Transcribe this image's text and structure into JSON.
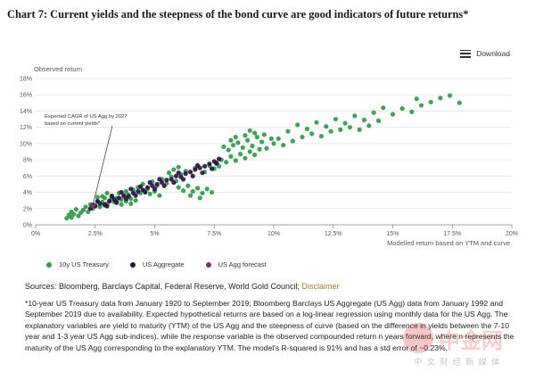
{
  "title": "Chart 7: Current yields and the steepness of the bond curve are good indicators of future returns*",
  "toolbar": {
    "download_label": "Download"
  },
  "icons": {
    "download": "hamburger-menu-icon"
  },
  "chart_data": {
    "type": "scatter",
    "ylabel": "Observed return",
    "xlabel": "Modelled return based on YTM and curve",
    "xlim": [
      0,
      20
    ],
    "ylim": [
      0,
      18
    ],
    "x_ticks": [
      "0%",
      "2.5%",
      "5%",
      "7.5%",
      "10%",
      "12.5%",
      "15%",
      "17.5%",
      "20%"
    ],
    "y_ticks": [
      "0%",
      "2%",
      "4%",
      "6%",
      "8%",
      "10%",
      "12%",
      "14%",
      "16%",
      "18%"
    ],
    "grid": "horizontal",
    "legend_position": "bottom-left",
    "annotation": {
      "text": [
        "Expected CAGR of US Agg by 2027",
        "based on current yields*"
      ],
      "x": 2.4,
      "y": 2.4
    },
    "colors": {
      "treasury": "#2e9b4b",
      "aggregate": "#2c1245",
      "forecast": "#7a2f6a"
    },
    "series": [
      {
        "name": "10y US Treasury",
        "color": "#2e9b4b",
        "points": [
          [
            1.3,
            0.8
          ],
          [
            1.4,
            1.2
          ],
          [
            1.5,
            1.6
          ],
          [
            1.5,
            0.9
          ],
          [
            1.6,
            1.3
          ],
          [
            1.7,
            1.9
          ],
          [
            1.8,
            1.1
          ],
          [
            1.9,
            1.5
          ],
          [
            2.0,
            1.8
          ],
          [
            2.1,
            2.2
          ],
          [
            2.2,
            1.6
          ],
          [
            2.3,
            2.5
          ],
          [
            2.4,
            2.0
          ],
          [
            2.5,
            2.4
          ],
          [
            2.6,
            2.9
          ],
          [
            2.7,
            2.2
          ],
          [
            2.8,
            2.8
          ],
          [
            2.9,
            3.3
          ],
          [
            3.0,
            2.6
          ],
          [
            3.1,
            3.0
          ],
          [
            3.2,
            3.6
          ],
          [
            3.3,
            2.8
          ],
          [
            3.4,
            3.3
          ],
          [
            3.5,
            3.9
          ],
          [
            3.6,
            3.1
          ],
          [
            3.7,
            3.5
          ],
          [
            3.8,
            4.1
          ],
          [
            3.9,
            3.7
          ],
          [
            4.0,
            3.2
          ],
          [
            4.1,
            4.3
          ],
          [
            2.8,
            3.5
          ],
          [
            3.0,
            3.9
          ],
          [
            3.2,
            3.4
          ],
          [
            3.4,
            2.7
          ],
          [
            3.6,
            2.5
          ],
          [
            3.8,
            2.9
          ],
          [
            4.0,
            2.6
          ],
          [
            4.2,
            3.0
          ],
          [
            2.6,
            3.4
          ],
          [
            2.9,
            2.4
          ],
          [
            4.3,
            4.6
          ],
          [
            4.5,
            5.0
          ],
          [
            4.7,
            4.4
          ],
          [
            4.9,
            5.3
          ],
          [
            5.1,
            4.8
          ],
          [
            5.3,
            5.6
          ],
          [
            5.5,
            5.1
          ],
          [
            5.7,
            5.9
          ],
          [
            5.9,
            5.4
          ],
          [
            6.1,
            6.2
          ],
          [
            4.4,
            3.9
          ],
          [
            4.6,
            4.2
          ],
          [
            4.8,
            3.8
          ],
          [
            5.0,
            4.1
          ],
          [
            5.2,
            3.6
          ],
          [
            6.0,
            4.6
          ],
          [
            6.2,
            4.2
          ],
          [
            6.4,
            4.8
          ],
          [
            6.6,
            4.1
          ],
          [
            6.8,
            4.5
          ],
          [
            7.0,
            3.9
          ],
          [
            7.2,
            4.4
          ],
          [
            6.5,
            3.6
          ],
          [
            6.9,
            3.3
          ],
          [
            7.4,
            4.0
          ],
          [
            7.6,
            7.5
          ],
          [
            7.8,
            8.0
          ],
          [
            8.0,
            7.7
          ],
          [
            8.2,
            8.4
          ],
          [
            8.4,
            7.9
          ],
          [
            8.6,
            8.7
          ],
          [
            8.8,
            8.2
          ],
          [
            9.0,
            9.0
          ],
          [
            9.2,
            8.6
          ],
          [
            9.4,
            9.3
          ],
          [
            8.1,
            9.2
          ],
          [
            8.3,
            9.8
          ],
          [
            8.5,
            10.1
          ],
          [
            8.7,
            9.5
          ],
          [
            8.9,
            10.4
          ],
          [
            9.1,
            9.7
          ],
          [
            9.3,
            10.8
          ],
          [
            9.5,
            10.2
          ],
          [
            9.7,
            9.4
          ],
          [
            9.9,
            10.6
          ],
          [
            8.4,
            10.8
          ],
          [
            8.8,
            11.0
          ],
          [
            9.2,
            11.3
          ],
          [
            9.6,
            11.1
          ],
          [
            10.0,
            10.0
          ],
          [
            10.2,
            10.6
          ],
          [
            10.4,
            9.8
          ],
          [
            7.9,
            9.6
          ],
          [
            8.2,
            10.4
          ],
          [
            9.0,
            11.6
          ],
          [
            10.6,
            11.5
          ],
          [
            11.0,
            12.3
          ],
          [
            11.4,
            11.8
          ],
          [
            11.8,
            12.6
          ],
          [
            12.2,
            12.1
          ],
          [
            12.6,
            13.0
          ],
          [
            13.0,
            12.5
          ],
          [
            13.4,
            13.4
          ],
          [
            13.8,
            12.9
          ],
          [
            14.2,
            13.8
          ],
          [
            10.8,
            10.3
          ],
          [
            11.2,
            10.8
          ],
          [
            11.6,
            11.2
          ],
          [
            12.0,
            10.9
          ],
          [
            12.4,
            11.5
          ],
          [
            12.8,
            11.7
          ],
          [
            13.2,
            12.0
          ],
          [
            13.6,
            11.7
          ],
          [
            14.0,
            12.2
          ],
          [
            14.4,
            12.8
          ],
          [
            14.6,
            14.4
          ],
          [
            15.0,
            13.6
          ],
          [
            15.4,
            14.3
          ],
          [
            15.8,
            13.9
          ],
          [
            16.2,
            14.7
          ],
          [
            16.6,
            15.1
          ],
          [
            17.0,
            15.6
          ],
          [
            17.4,
            15.9
          ],
          [
            17.8,
            15.0
          ],
          [
            16.0,
            15.5
          ],
          [
            5.6,
            6.4
          ],
          [
            5.8,
            6.8
          ],
          [
            6.0,
            7.1
          ],
          [
            6.3,
            6.6
          ],
          [
            6.7,
            7.0
          ],
          [
            7.1,
            6.5
          ],
          [
            7.3,
            7.3
          ],
          [
            7.5,
            6.9
          ],
          [
            7.7,
            7.2
          ]
        ]
      },
      {
        "name": "US Aggregate",
        "color": "#2c1245",
        "points": [
          [
            2.3,
            2.0
          ],
          [
            2.5,
            2.3
          ],
          [
            2.7,
            2.6
          ],
          [
            2.9,
            2.5
          ],
          [
            3.1,
            2.9
          ],
          [
            3.3,
            3.1
          ],
          [
            3.5,
            3.3
          ],
          [
            3.7,
            3.6
          ],
          [
            3.9,
            3.5
          ],
          [
            4.1,
            3.9
          ],
          [
            4.3,
            4.1
          ],
          [
            4.5,
            4.3
          ],
          [
            4.7,
            4.6
          ],
          [
            4.9,
            4.8
          ],
          [
            5.1,
            5.0
          ],
          [
            5.3,
            5.2
          ],
          [
            5.5,
            5.5
          ],
          [
            5.7,
            5.6
          ],
          [
            5.9,
            6.0
          ],
          [
            6.1,
            5.9
          ],
          [
            6.3,
            6.3
          ],
          [
            6.5,
            6.5
          ],
          [
            6.7,
            6.8
          ],
          [
            6.9,
            7.0
          ],
          [
            7.1,
            7.2
          ],
          [
            7.3,
            7.5
          ],
          [
            7.5,
            7.8
          ],
          [
            7.7,
            8.1
          ],
          [
            3.0,
            2.3
          ],
          [
            3.4,
            2.8
          ],
          [
            3.8,
            3.2
          ],
          [
            4.2,
            3.6
          ],
          [
            4.6,
            4.0
          ],
          [
            5.0,
            4.4
          ],
          [
            5.4,
            4.8
          ],
          [
            5.8,
            5.2
          ],
          [
            6.2,
            5.6
          ],
          [
            6.6,
            6.0
          ],
          [
            7.0,
            6.4
          ],
          [
            7.4,
            6.9
          ],
          [
            2.6,
            2.9
          ],
          [
            3.2,
            3.5
          ],
          [
            3.6,
            4.0
          ],
          [
            4.4,
            4.7
          ],
          [
            5.2,
            5.6
          ],
          [
            6.0,
            6.4
          ],
          [
            6.8,
            7.3
          ],
          [
            7.6,
            7.6
          ],
          [
            4.0,
            4.4
          ],
          [
            4.8,
            5.2
          ]
        ]
      },
      {
        "name": "US Agg forecast",
        "color": "#7a2f6a",
        "points": [
          [
            2.4,
            2.4
          ]
        ]
      }
    ]
  },
  "sources": {
    "text": "Sources: Bloomberg, Barclays Capital, Federal Reserve, World Gold Council; ",
    "disclaimer": "Disclaimer"
  },
  "footnote": "*10-year US Treasury data from January 1920 to September 2019; Bloomberg Barclays US Aggregate (US Agg) data from January 1992 and September 2019 due to availability. Expected hypothetical returns are based on a log-linear regression using monthly data for the US Agg. The explanatory variables are yield to maturity (YTM) of the US Agg and the steepness of curve (based on the difference in yields between the 7-10 year and 1-3 year US Agg sub-indices), while the response variable is the observed compounded return n years forward, where n represents the maturity of the US Agg corresponding to the explanatory YTM. The model's R-squared is 91% and has a std error of ~0.23%.",
  "watermark": {
    "text": "中金网",
    "sub": "中文财经新媒体"
  }
}
